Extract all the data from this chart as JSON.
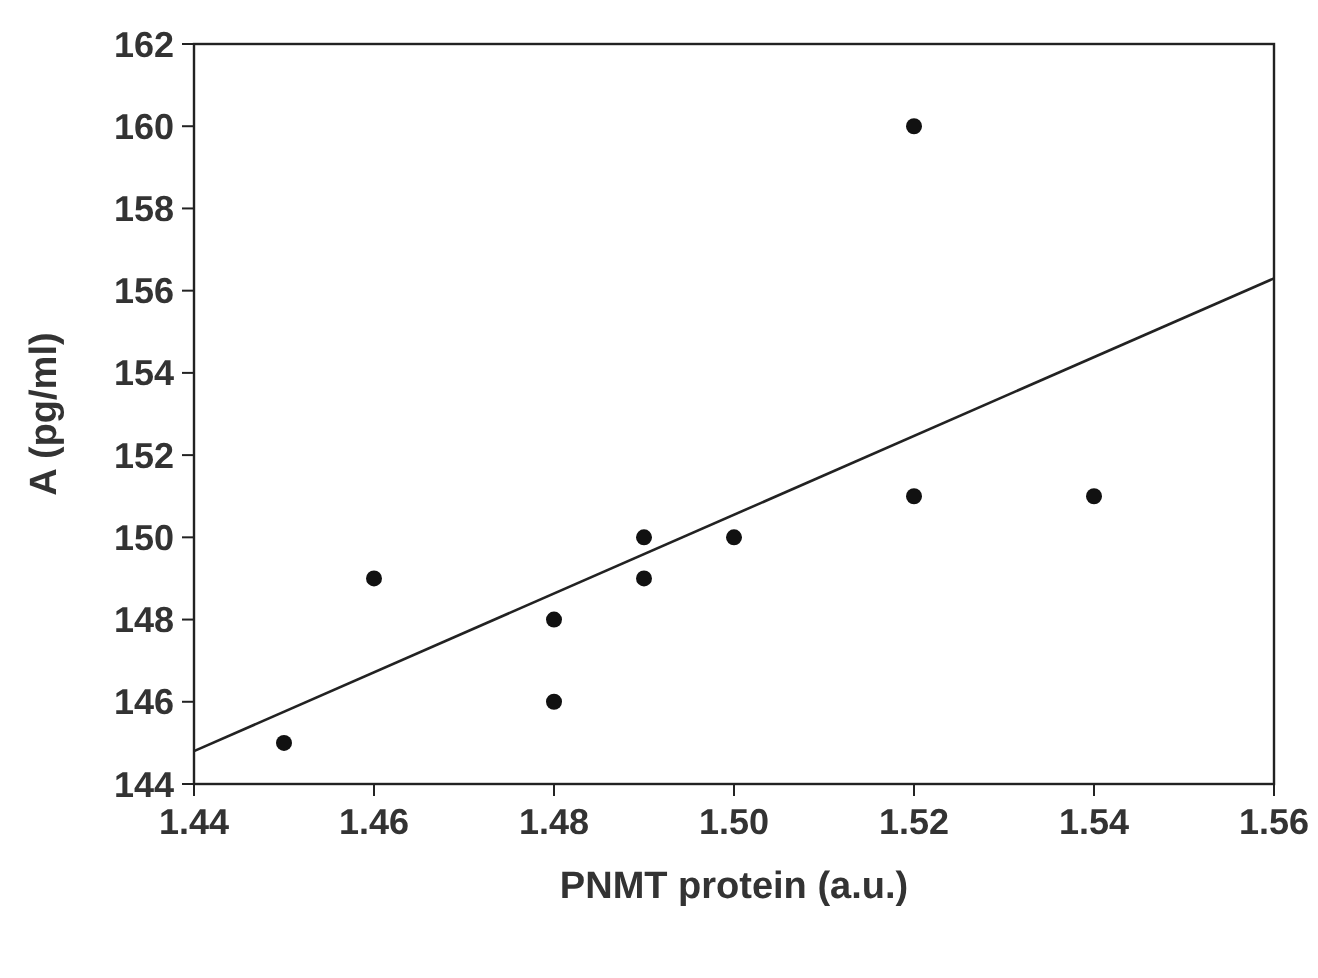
{
  "chart_data": {
    "type": "scatter",
    "xlabel": "PNMT protein (a.u.)",
    "ylabel": "A (pg/ml)",
    "xlim": [
      1.44,
      1.56
    ],
    "ylim": [
      144,
      162
    ],
    "xticks": [
      {
        "value": 1.44,
        "label": "1.44"
      },
      {
        "value": 1.46,
        "label": "1.46"
      },
      {
        "value": 1.48,
        "label": "1.48"
      },
      {
        "value": 1.5,
        "label": "1.50"
      },
      {
        "value": 1.52,
        "label": "1.52"
      },
      {
        "value": 1.54,
        "label": "1.54"
      },
      {
        "value": 1.56,
        "label": "1.56"
      }
    ],
    "yticks": [
      144,
      146,
      148,
      150,
      152,
      154,
      156,
      158,
      160,
      162
    ],
    "grid": false,
    "series": [
      {
        "marker": "circle",
        "color": "#111111",
        "x": [
          1.45,
          1.46,
          1.48,
          1.48,
          1.49,
          1.49,
          1.5,
          1.52,
          1.52,
          1.54
        ],
        "values": [
          145,
          149,
          148,
          146,
          150,
          149,
          150,
          160,
          151,
          151
        ]
      },
      {
        "type": "line",
        "color": "#222222",
        "x": [
          1.44,
          1.56
        ],
        "values": [
          144.8,
          156.3
        ]
      }
    ]
  }
}
